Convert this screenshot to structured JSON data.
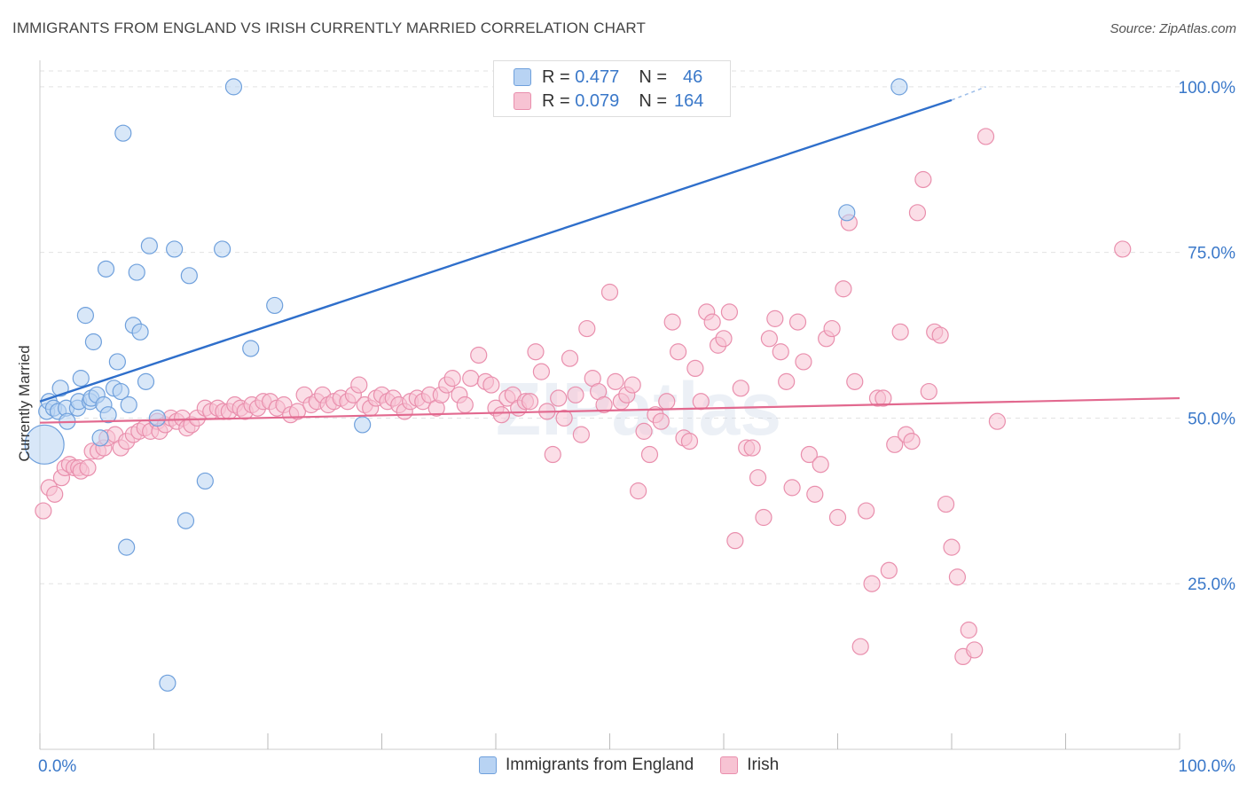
{
  "title": "IMMIGRANTS FROM ENGLAND VS IRISH CURRENTLY MARRIED CORRELATION CHART",
  "source": "Source: ZipAtlas.com",
  "watermark": "ZIPatlas",
  "legend_top": {
    "rows": [
      {
        "r_label": "R =",
        "r_value": "0.477",
        "n_label": "N =",
        "n_value": "46"
      },
      {
        "r_label": "R =",
        "r_value": "0.079",
        "n_label": "N =",
        "n_value": "164"
      }
    ]
  },
  "legend_bottom": [
    "Immigrants from England",
    "Irish"
  ],
  "colors": {
    "blue_fill": "#b8d3f3",
    "blue_stroke": "#6fa0dc",
    "blue_line": "#2f6fcb",
    "pink_fill": "#f7c3d3",
    "pink_stroke": "#e98fad",
    "pink_line": "#e2698f",
    "tick_label": "#3a78c9",
    "grid": "#e2e2e2"
  },
  "chart_data": {
    "type": "scatter",
    "title": "IMMIGRANTS FROM ENGLAND VS IRISH CURRENTLY MARRIED CORRELATION CHART",
    "xlabel": "",
    "ylabel": "Currently Married",
    "xlim": [
      0,
      100
    ],
    "ylim": [
      0,
      104
    ],
    "x_tick_labels": [
      "0.0%",
      "100.0%"
    ],
    "y_ticks": [
      25,
      50,
      75,
      100
    ],
    "y_tick_labels": [
      "25.0%",
      "50.0%",
      "75.0%",
      "100.0%"
    ],
    "grid": true,
    "legend_placement": "top-center",
    "series": [
      {
        "name": "Immigrants from England",
        "R": 0.477,
        "N": 46,
        "trend": {
          "x0": 0,
          "y0": 52.5,
          "x1": 80,
          "y1": 98.0,
          "dashed_to_x": 83,
          "dashed_to_y": 100
        },
        "points": [
          [
            0.4,
            46.0,
            22
          ],
          [
            0.6,
            51.0,
            9
          ],
          [
            0.8,
            52.5,
            9
          ],
          [
            1.2,
            51.5,
            9
          ],
          [
            1.6,
            51.0,
            9
          ],
          [
            1.8,
            54.5,
            9
          ],
          [
            2.3,
            51.5,
            9
          ],
          [
            2.4,
            49.5,
            9
          ],
          [
            3.3,
            51.5,
            9
          ],
          [
            3.4,
            52.5,
            9
          ],
          [
            3.6,
            56.0,
            9
          ],
          [
            4.0,
            65.5,
            9
          ],
          [
            4.4,
            52.5,
            9
          ],
          [
            4.5,
            53.0,
            9
          ],
          [
            4.7,
            61.5,
            9
          ],
          [
            5.0,
            53.5,
            9
          ],
          [
            5.3,
            47.0,
            9
          ],
          [
            5.6,
            52.0,
            9
          ],
          [
            5.8,
            72.5,
            9
          ],
          [
            6.0,
            50.5,
            9
          ],
          [
            6.5,
            54.5,
            9
          ],
          [
            6.8,
            58.5,
            9
          ],
          [
            7.1,
            54.0,
            9
          ],
          [
            7.3,
            93.0,
            9
          ],
          [
            7.6,
            30.5,
            9
          ],
          [
            7.8,
            52.0,
            9
          ],
          [
            8.2,
            64.0,
            9
          ],
          [
            8.5,
            72.0,
            9
          ],
          [
            8.8,
            63.0,
            9
          ],
          [
            9.3,
            55.5,
            9
          ],
          [
            9.6,
            76.0,
            9
          ],
          [
            10.3,
            50.0,
            9
          ],
          [
            11.2,
            10.0,
            9
          ],
          [
            11.8,
            75.5,
            9
          ],
          [
            12.8,
            34.5,
            9
          ],
          [
            13.1,
            71.5,
            9
          ],
          [
            14.5,
            40.5,
            9
          ],
          [
            16.0,
            75.5,
            9
          ],
          [
            17.0,
            100.0,
            9
          ],
          [
            18.5,
            60.5,
            9
          ],
          [
            20.6,
            67.0,
            9
          ],
          [
            28.3,
            49.0,
            9
          ],
          [
            70.8,
            81.0,
            9
          ],
          [
            75.4,
            100.0,
            9
          ]
        ]
      },
      {
        "name": "Irish",
        "R": 0.079,
        "N": 164,
        "trend": {
          "x0": 0,
          "y0": 49.3,
          "x1": 100,
          "y1": 53.0
        },
        "points": [
          [
            0.3,
            36.0
          ],
          [
            0.8,
            39.5
          ],
          [
            1.3,
            38.5
          ],
          [
            1.9,
            41.0
          ],
          [
            2.2,
            42.5
          ],
          [
            2.6,
            43.0
          ],
          [
            3.0,
            42.5
          ],
          [
            3.4,
            42.5
          ],
          [
            3.6,
            42.0
          ],
          [
            4.2,
            42.5
          ],
          [
            4.6,
            45.0
          ],
          [
            5.1,
            45.0
          ],
          [
            5.6,
            45.5
          ],
          [
            5.9,
            47.0
          ],
          [
            6.6,
            47.5
          ],
          [
            7.1,
            45.5
          ],
          [
            7.6,
            46.5
          ],
          [
            8.2,
            47.5
          ],
          [
            8.7,
            48.0
          ],
          [
            9.2,
            48.5
          ],
          [
            9.7,
            48.0
          ],
          [
            10.3,
            49.5
          ],
          [
            10.5,
            48.0
          ],
          [
            11.0,
            49.0
          ],
          [
            11.5,
            50.0
          ],
          [
            12.0,
            49.5
          ],
          [
            12.5,
            50.0
          ],
          [
            12.9,
            48.5
          ],
          [
            13.3,
            49.0
          ],
          [
            13.8,
            50.0
          ],
          [
            14.5,
            51.5
          ],
          [
            15.0,
            51.0
          ],
          [
            15.6,
            51.5
          ],
          [
            16.1,
            51.0
          ],
          [
            16.6,
            51.0
          ],
          [
            17.1,
            52.0
          ],
          [
            17.6,
            51.5
          ],
          [
            18.0,
            51.0
          ],
          [
            18.6,
            52.0
          ],
          [
            19.1,
            51.5
          ],
          [
            19.6,
            52.5
          ],
          [
            20.2,
            52.5
          ],
          [
            20.8,
            51.5
          ],
          [
            21.4,
            52.0
          ],
          [
            22.0,
            50.5
          ],
          [
            22.6,
            51.0
          ],
          [
            23.2,
            53.5
          ],
          [
            23.8,
            52.0
          ],
          [
            24.3,
            52.5
          ],
          [
            24.8,
            53.5
          ],
          [
            25.3,
            52.0
          ],
          [
            25.8,
            52.5
          ],
          [
            26.4,
            53.0
          ],
          [
            27.0,
            52.5
          ],
          [
            27.5,
            53.5
          ],
          [
            28.0,
            55.0
          ],
          [
            28.5,
            52.0
          ],
          [
            29.0,
            51.5
          ],
          [
            29.5,
            53.0
          ],
          [
            30.0,
            53.5
          ],
          [
            30.5,
            52.5
          ],
          [
            31.0,
            53.0
          ],
          [
            31.5,
            52.0
          ],
          [
            32.0,
            51.0
          ],
          [
            32.5,
            52.5
          ],
          [
            33.1,
            53.0
          ],
          [
            33.6,
            52.5
          ],
          [
            34.2,
            53.5
          ],
          [
            34.8,
            51.5
          ],
          [
            35.2,
            53.5
          ],
          [
            35.7,
            55.0
          ],
          [
            36.2,
            56.0
          ],
          [
            36.8,
            53.5
          ],
          [
            37.3,
            52.0
          ],
          [
            37.8,
            56.0
          ],
          [
            38.5,
            59.5
          ],
          [
            39.1,
            55.5
          ],
          [
            39.6,
            55.0
          ],
          [
            40.0,
            51.5
          ],
          [
            40.5,
            50.5
          ],
          [
            41.0,
            53.0
          ],
          [
            41.5,
            53.5
          ],
          [
            42.0,
            51.5
          ],
          [
            42.6,
            52.5
          ],
          [
            43.0,
            52.5
          ],
          [
            43.5,
            60.0
          ],
          [
            44.0,
            57.0
          ],
          [
            44.5,
            51.0
          ],
          [
            45.0,
            44.5
          ],
          [
            45.5,
            53.0
          ],
          [
            46.0,
            50.0
          ],
          [
            46.5,
            59.0
          ],
          [
            47.0,
            53.5
          ],
          [
            47.5,
            47.5
          ],
          [
            48.0,
            63.5
          ],
          [
            48.5,
            56.0
          ],
          [
            49.0,
            54.0
          ],
          [
            49.5,
            52.0
          ],
          [
            50.0,
            69.0
          ],
          [
            50.5,
            55.5
          ],
          [
            51.0,
            52.5
          ],
          [
            51.5,
            53.5
          ],
          [
            52.0,
            55.0
          ],
          [
            52.5,
            39.0
          ],
          [
            53.0,
            48.0
          ],
          [
            53.5,
            44.5
          ],
          [
            54.0,
            50.5
          ],
          [
            54.5,
            49.5
          ],
          [
            55.0,
            52.5
          ],
          [
            55.5,
            64.5
          ],
          [
            56.0,
            60.0
          ],
          [
            56.5,
            47.0
          ],
          [
            57.0,
            46.5
          ],
          [
            57.5,
            57.5
          ],
          [
            58.0,
            52.5
          ],
          [
            58.5,
            66.0
          ],
          [
            59.0,
            64.5
          ],
          [
            59.5,
            61.0
          ],
          [
            60.0,
            62.0
          ],
          [
            60.5,
            66.0
          ],
          [
            61.0,
            31.5
          ],
          [
            61.5,
            54.5
          ],
          [
            62.0,
            45.5
          ],
          [
            62.5,
            45.5
          ],
          [
            63.0,
            41.0
          ],
          [
            63.5,
            35.0
          ],
          [
            64.0,
            62.0
          ],
          [
            64.5,
            65.0
          ],
          [
            65.0,
            60.0
          ],
          [
            65.5,
            55.5
          ],
          [
            66.0,
            39.5
          ],
          [
            66.5,
            64.5
          ],
          [
            67.0,
            58.5
          ],
          [
            67.5,
            44.5
          ],
          [
            68.0,
            38.5
          ],
          [
            68.5,
            43.0
          ],
          [
            69.0,
            62.0
          ],
          [
            69.5,
            63.5
          ],
          [
            70.0,
            35.0
          ],
          [
            70.5,
            69.5
          ],
          [
            71.0,
            79.5
          ],
          [
            71.5,
            55.5
          ],
          [
            72.0,
            15.5
          ],
          [
            72.5,
            36.0
          ],
          [
            73.0,
            25.0
          ],
          [
            73.5,
            53.0
          ],
          [
            74.0,
            53.0
          ],
          [
            74.5,
            27.0
          ],
          [
            75.0,
            46.0
          ],
          [
            75.5,
            63.0
          ],
          [
            76.0,
            47.5
          ],
          [
            76.5,
            46.5
          ],
          [
            77.0,
            81.0
          ],
          [
            77.5,
            86.0
          ],
          [
            78.0,
            54.0
          ],
          [
            78.5,
            63.0
          ],
          [
            79.0,
            62.5
          ],
          [
            79.5,
            37.0
          ],
          [
            80.0,
            30.5
          ],
          [
            80.5,
            26.0
          ],
          [
            81.0,
            14.0
          ],
          [
            81.5,
            18.0
          ],
          [
            82.0,
            15.0
          ],
          [
            83.0,
            92.5
          ],
          [
            84.0,
            49.5
          ],
          [
            95.0,
            75.5
          ]
        ]
      }
    ]
  }
}
